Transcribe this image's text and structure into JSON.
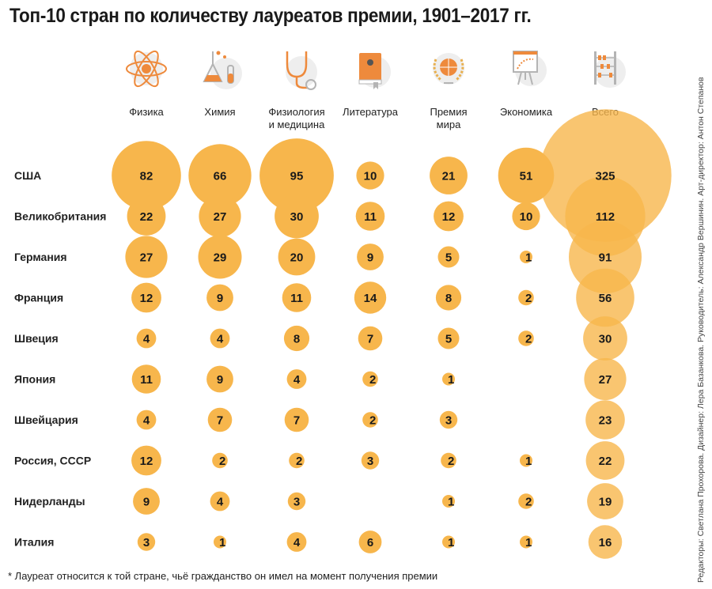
{
  "title": "Топ-10 стран по количеству лауреатов премии, 1901–2017 гг.",
  "footnote": "* Лауреат относится к той стране, чьё гражданство он имел на момент получения премии",
  "credits": "Редакторы: Светлана Прохорова. Дизайнер: Лера Базанкова. Руководитель: Александр Вершинин. Арт-директор: Антон Степанов",
  "colors": {
    "bubble": "#f7b64c",
    "bubble_overlap": "#ef8a22",
    "icon_accent": "#ee8a3c",
    "icon_stroke": "#b4b4b4"
  },
  "chart_data": {
    "type": "bubble-matrix",
    "title": "Топ-10 стран по количеству лауреатов премии, 1901–2017 гг.",
    "categories": [
      {
        "key": "physics",
        "label_lines": [
          "Физика"
        ],
        "icon": "atom-icon"
      },
      {
        "key": "chemistry",
        "label_lines": [
          "Химия"
        ],
        "icon": "flask-icon"
      },
      {
        "key": "medicine",
        "label_lines": [
          "Физиология",
          "и медицина"
        ],
        "icon": "stethoscope-icon"
      },
      {
        "key": "literature",
        "label_lines": [
          "Литература"
        ],
        "icon": "book-icon"
      },
      {
        "key": "peace",
        "label_lines": [
          "Премия",
          "мира"
        ],
        "icon": "globe-laurel-icon"
      },
      {
        "key": "economics",
        "label_lines": [
          "Экономика"
        ],
        "icon": "chart-board-icon"
      },
      {
        "key": "total",
        "label_lines": [
          "Всего"
        ],
        "icon": "abacus-icon"
      }
    ],
    "countries": [
      "США",
      "Великобритания",
      "Германия",
      "Франция",
      "Швеция",
      "Япония",
      "Швейцария",
      "Россия, СССР",
      "Нидерланды",
      "Италия"
    ],
    "values": [
      [
        82,
        66,
        95,
        10,
        21,
        51,
        325
      ],
      [
        22,
        27,
        30,
        11,
        12,
        10,
        112
      ],
      [
        27,
        29,
        20,
        9,
        5,
        1,
        91
      ],
      [
        12,
        9,
        11,
        14,
        8,
        2,
        56
      ],
      [
        4,
        4,
        8,
        7,
        5,
        2,
        30
      ],
      [
        11,
        9,
        4,
        2,
        1,
        null,
        27
      ],
      [
        4,
        7,
        7,
        2,
        3,
        null,
        23
      ],
      [
        12,
        2,
        2,
        3,
        2,
        1,
        22
      ],
      [
        9,
        4,
        3,
        null,
        1,
        2,
        19
      ],
      [
        3,
        1,
        4,
        6,
        1,
        1,
        16
      ]
    ]
  }
}
